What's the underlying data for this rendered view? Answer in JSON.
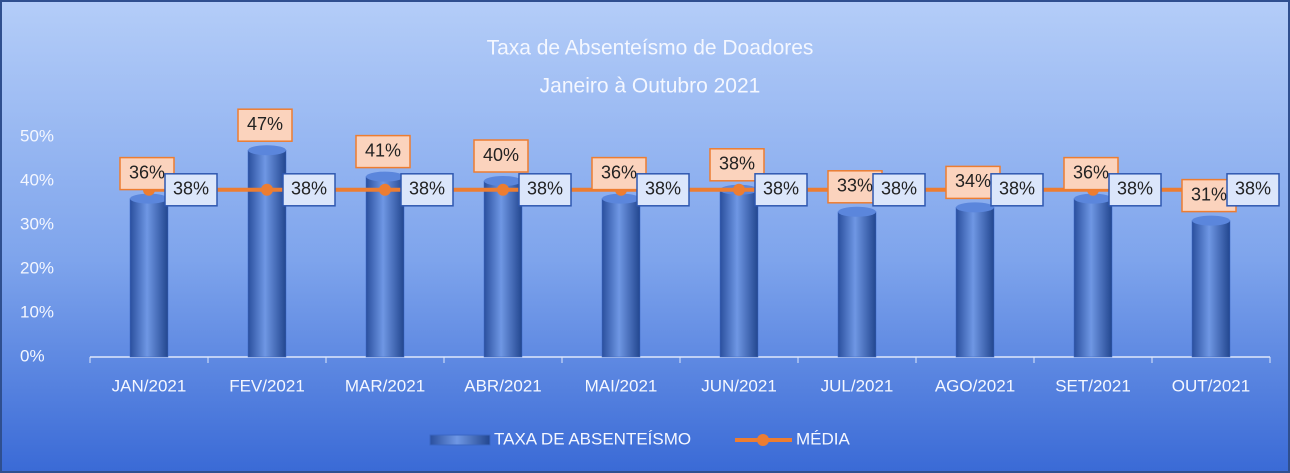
{
  "chart_data": {
    "type": "bar_line",
    "title": "Taxa de Absenteísmo de Doadores",
    "subtitle": "Janeiro à Outubro 2021",
    "categories": [
      "JAN/2021",
      "FEV/2021",
      "MAR/2021",
      "ABR/2021",
      "MAI/2021",
      "JUN/2021",
      "JUL/2021",
      "AGO/2021",
      "SET/2021",
      "OUT/2021"
    ],
    "series": [
      {
        "name": "TAXA DE ABSENTEÍSMO",
        "type": "bar",
        "color": "#3a66c4",
        "values": [
          36,
          47,
          41,
          40,
          36,
          38,
          33,
          34,
          36,
          31
        ],
        "value_labels": [
          "36%",
          "47%",
          "41%",
          "40%",
          "36%",
          "38%",
          "33%",
          "34%",
          "36%",
          "31%"
        ]
      },
      {
        "name": "MÉDIA",
        "type": "line",
        "color": "#ed7d31",
        "values": [
          38,
          38,
          38,
          38,
          38,
          38,
          38,
          38,
          38,
          38
        ],
        "value_labels": [
          "38%",
          "38%",
          "38%",
          "38%",
          "38%",
          "38%",
          "38%",
          "38%",
          "38%",
          "38%"
        ]
      }
    ],
    "ylim": [
      0,
      50
    ],
    "yticks": [
      {
        "value": 0,
        "label": "0%"
      },
      {
        "value": 10,
        "label": "10%"
      },
      {
        "value": 20,
        "label": "20%"
      },
      {
        "value": 30,
        "label": "30%"
      },
      {
        "value": 40,
        "label": "40%"
      },
      {
        "value": 50,
        "label": "50%"
      }
    ],
    "grid": false,
    "legend": "bottom"
  }
}
